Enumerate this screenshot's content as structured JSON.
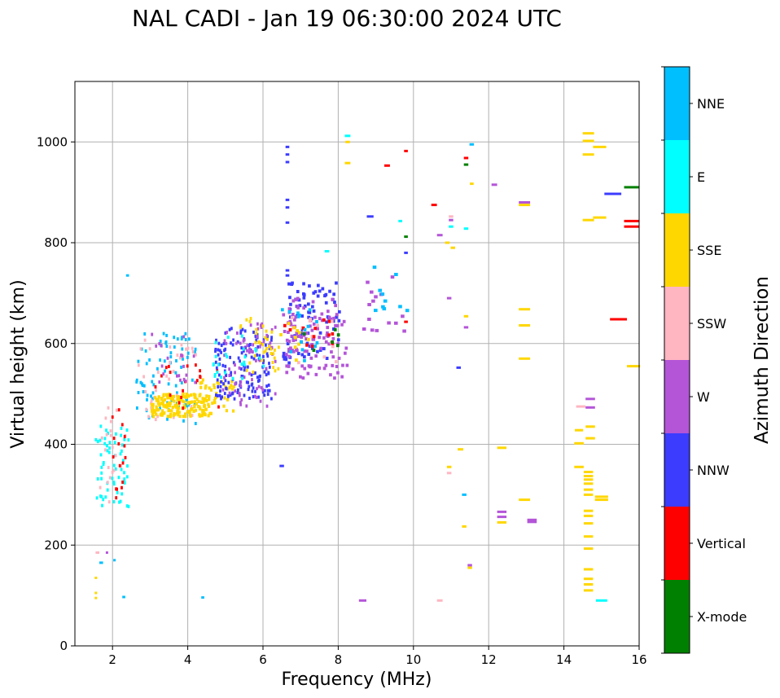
{
  "chart_data": {
    "type": "scatter",
    "title": "NAL CADI - Jan 19 06:30:00 2024 UTC",
    "xlabel": "Frequency (MHz)",
    "ylabel": "Virtual height (km)",
    "xlim": [
      1,
      16
    ],
    "ylim": [
      0,
      1120
    ],
    "xticks": [
      2,
      4,
      6,
      8,
      10,
      12,
      14,
      16
    ],
    "yticks": [
      0,
      200,
      400,
      600,
      800,
      1000
    ],
    "grid": true,
    "colorbar": {
      "title": "Azimuth Direction",
      "categories": [
        {
          "name": "X-mode",
          "color": "#008000"
        },
        {
          "name": "Vertical",
          "color": "#ff0000"
        },
        {
          "name": "NNW",
          "color": "#3c3cff"
        },
        {
          "name": "W",
          "color": "#b455d8"
        },
        {
          "name": "SSW",
          "color": "#ffb6c1"
        },
        {
          "name": "SSE",
          "color": "#ffd700"
        },
        {
          "name": "E",
          "color": "#00ffff"
        },
        {
          "name": "NNE",
          "color": "#00bfff"
        }
      ]
    },
    "clusters": [
      {
        "category": "E",
        "f": [
          1.5,
          2.4
        ],
        "h": [
          270,
          440
        ],
        "n": 60,
        "dx": 0.06
      },
      {
        "category": "SSW",
        "f": [
          1.6,
          2.4
        ],
        "h": [
          280,
          500
        ],
        "n": 20,
        "dx": 0.06
      },
      {
        "category": "Vertical",
        "f": [
          1.9,
          2.4
        ],
        "h": [
          290,
          500
        ],
        "n": 16,
        "dx": 0.06
      },
      {
        "category": "NNE",
        "f": [
          2.6,
          4.2
        ],
        "h": [
          430,
          620
        ],
        "n": 80,
        "dx": 0.06
      },
      {
        "category": "SSW",
        "f": [
          2.6,
          4.2
        ],
        "h": [
          440,
          610
        ],
        "n": 40,
        "dx": 0.06
      },
      {
        "category": "SSE",
        "f": [
          3.0,
          4.6
        ],
        "h": [
          455,
          500
        ],
        "n": 160,
        "dx": 0.07
      },
      {
        "category": "SSE",
        "f": [
          4.3,
          5.2
        ],
        "h": [
          460,
          530
        ],
        "n": 40,
        "dx": 0.07
      },
      {
        "category": "Vertical",
        "f": [
          3.0,
          4.8
        ],
        "h": [
          470,
          560
        ],
        "n": 20,
        "dx": 0.06
      },
      {
        "category": "W",
        "f": [
          3.0,
          4.5
        ],
        "h": [
          520,
          620
        ],
        "n": 20,
        "dx": 0.06
      },
      {
        "category": "NNW",
        "f": [
          4.7,
          6.2
        ],
        "h": [
          490,
          630
        ],
        "n": 150,
        "dx": 0.06
      },
      {
        "category": "W",
        "f": [
          4.9,
          6.3
        ],
        "h": [
          470,
          640
        ],
        "n": 70,
        "dx": 0.06
      },
      {
        "category": "SSE",
        "f": [
          5.3,
          6.5
        ],
        "h": [
          540,
          650
        ],
        "n": 35,
        "dx": 0.06
      },
      {
        "category": "E",
        "f": [
          4.6,
          6.0
        ],
        "h": [
          520,
          620
        ],
        "n": 25,
        "dx": 0.06
      },
      {
        "category": "NNW",
        "f": [
          6.5,
          8.0
        ],
        "h": [
          560,
          720
        ],
        "n": 80,
        "dx": 0.08
      },
      {
        "category": "W",
        "f": [
          6.5,
          8.2
        ],
        "h": [
          530,
          690
        ],
        "n": 110,
        "dx": 0.08
      },
      {
        "category": "SSW",
        "f": [
          6.6,
          8.0
        ],
        "h": [
          560,
          660
        ],
        "n": 15,
        "dx": 0.08
      },
      {
        "category": "Vertical",
        "f": [
          6.5,
          8.0
        ],
        "h": [
          570,
          650
        ],
        "n": 12,
        "dx": 0.08
      },
      {
        "category": "SSE",
        "f": [
          6.3,
          7.2
        ],
        "h": [
          560,
          640
        ],
        "n": 10,
        "dx": 0.08
      },
      {
        "category": "NNE",
        "f": [
          6.4,
          7.5
        ],
        "h": [
          560,
          680
        ],
        "n": 15,
        "dx": 0.08
      },
      {
        "category": "X-mode",
        "f": [
          7.0,
          8.2
        ],
        "h": [
          580,
          640
        ],
        "n": 6,
        "dx": 0.08
      },
      {
        "category": "W",
        "f": [
          8.5,
          9.8
        ],
        "h": [
          620,
          740
        ],
        "n": 15,
        "dx": 0.1
      },
      {
        "category": "NNE",
        "f": [
          8.8,
          9.8
        ],
        "h": [
          640,
          760
        ],
        "n": 10,
        "dx": 0.1
      }
    ],
    "segments": [
      {
        "category": "NNE",
        "f": 2.4,
        "h": 735,
        "w": 0.08
      },
      {
        "category": "NNE",
        "f": 1.7,
        "h": 165,
        "w": 0.1
      },
      {
        "category": "NNE",
        "f": 2.05,
        "h": 170,
        "w": 0.06
      },
      {
        "category": "NNE",
        "f": 2.3,
        "h": 97,
        "w": 0.08
      },
      {
        "category": "NNE",
        "f": 4.4,
        "h": 96,
        "w": 0.08
      },
      {
        "category": "SSW",
        "f": 1.6,
        "h": 185,
        "w": 0.1
      },
      {
        "category": "W",
        "f": 1.85,
        "h": 185,
        "w": 0.06
      },
      {
        "category": "SSE",
        "f": 1.55,
        "h": 95,
        "w": 0.05
      },
      {
        "category": "SSE",
        "f": 1.55,
        "h": 105,
        "w": 0.05
      },
      {
        "category": "SSE",
        "f": 1.55,
        "h": 135,
        "w": 0.05
      },
      {
        "category": "NNW",
        "f": 6.5,
        "h": 357,
        "w": 0.12
      },
      {
        "category": "NNW",
        "f": 6.65,
        "h": 990,
        "w": 0.1
      },
      {
        "category": "NNW",
        "f": 6.65,
        "h": 975,
        "w": 0.1
      },
      {
        "category": "NNW",
        "f": 6.65,
        "h": 960,
        "w": 0.1
      },
      {
        "category": "NNW",
        "f": 6.65,
        "h": 885,
        "w": 0.1
      },
      {
        "category": "NNW",
        "f": 6.65,
        "h": 870,
        "w": 0.1
      },
      {
        "category": "NNW",
        "f": 6.65,
        "h": 840,
        "w": 0.1
      },
      {
        "category": "NNW",
        "f": 6.65,
        "h": 745,
        "w": 0.1
      },
      {
        "category": "NNW",
        "f": 6.65,
        "h": 735,
        "w": 0.1
      },
      {
        "category": "E",
        "f": 8.25,
        "h": 1012,
        "w": 0.15
      },
      {
        "category": "SSE",
        "f": 8.25,
        "h": 1000,
        "w": 0.12
      },
      {
        "category": "SSE",
        "f": 8.25,
        "h": 958,
        "w": 0.15
      },
      {
        "category": "NNW",
        "f": 8.85,
        "h": 852,
        "w": 0.18
      },
      {
        "category": "E",
        "f": 7.7,
        "h": 783,
        "w": 0.12
      },
      {
        "category": "Vertical",
        "f": 9.8,
        "h": 982,
        "w": 0.1
      },
      {
        "category": "Vertical",
        "f": 9.3,
        "h": 953,
        "w": 0.15
      },
      {
        "category": "E",
        "f": 9.65,
        "h": 843,
        "w": 0.1
      },
      {
        "category": "X-mode",
        "f": 9.8,
        "h": 812,
        "w": 0.1
      },
      {
        "category": "NNW",
        "f": 9.8,
        "h": 780,
        "w": 0.1
      },
      {
        "category": "Vertical",
        "f": 9.8,
        "h": 643,
        "w": 0.1
      },
      {
        "category": "Vertical",
        "f": 10.55,
        "h": 875,
        "w": 0.15
      },
      {
        "category": "W",
        "f": 10.7,
        "h": 815,
        "w": 0.15
      },
      {
        "category": "SSE",
        "f": 10.9,
        "h": 800,
        "w": 0.12
      },
      {
        "category": "SSE",
        "f": 11.05,
        "h": 790,
        "w": 0.12
      },
      {
        "category": "E",
        "f": 11.0,
        "h": 832,
        "w": 0.12
      },
      {
        "category": "W",
        "f": 11.0,
        "h": 845,
        "w": 0.12
      },
      {
        "category": "SSW",
        "f": 11.0,
        "h": 852,
        "w": 0.12
      },
      {
        "category": "Vertical",
        "f": 11.4,
        "h": 968,
        "w": 0.12
      },
      {
        "category": "X-mode",
        "f": 11.4,
        "h": 955,
        "w": 0.12
      },
      {
        "category": "E",
        "f": 11.4,
        "h": 828,
        "w": 0.12
      },
      {
        "category": "NNE",
        "f": 11.55,
        "h": 995,
        "w": 0.12
      },
      {
        "category": "SSE",
        "f": 11.55,
        "h": 917,
        "w": 0.1
      },
      {
        "category": "W",
        "f": 12.15,
        "h": 915,
        "w": 0.15
      },
      {
        "category": "W",
        "f": 10.95,
        "h": 690,
        "w": 0.12
      },
      {
        "category": "SSE",
        "f": 11.4,
        "h": 654,
        "w": 0.12
      },
      {
        "category": "W",
        "f": 11.4,
        "h": 632,
        "w": 0.12
      },
      {
        "category": "NNW",
        "f": 11.2,
        "h": 552,
        "w": 0.12
      },
      {
        "category": "SSE",
        "f": 11.25,
        "h": 390,
        "w": 0.15
      },
      {
        "category": "SSE",
        "f": 10.95,
        "h": 355,
        "w": 0.12
      },
      {
        "category": "SSW",
        "f": 10.95,
        "h": 343,
        "w": 0.12
      },
      {
        "category": "NNE",
        "f": 11.35,
        "h": 300,
        "w": 0.12
      },
      {
        "category": "SSE",
        "f": 11.35,
        "h": 237,
        "w": 0.12
      },
      {
        "category": "W",
        "f": 11.5,
        "h": 160,
        "w": 0.12
      },
      {
        "category": "SSE",
        "f": 11.5,
        "h": 155,
        "w": 0.12
      },
      {
        "category": "SSW",
        "f": 10.7,
        "h": 90,
        "w": 0.15
      },
      {
        "category": "W",
        "f": 8.65,
        "h": 90,
        "w": 0.2
      },
      {
        "category": "SSE",
        "f": 12.35,
        "h": 393,
        "w": 0.25
      },
      {
        "category": "W",
        "f": 12.35,
        "h": 266,
        "w": 0.25
      },
      {
        "category": "W",
        "f": 12.35,
        "h": 256,
        "w": 0.25
      },
      {
        "category": "SSE",
        "f": 12.35,
        "h": 245,
        "w": 0.25
      },
      {
        "category": "W",
        "f": 12.95,
        "h": 880,
        "w": 0.3
      },
      {
        "category": "SSE",
        "f": 12.95,
        "h": 875,
        "w": 0.3
      },
      {
        "category": "SSE",
        "f": 12.95,
        "h": 668,
        "w": 0.3
      },
      {
        "category": "SSE",
        "f": 12.95,
        "h": 636,
        "w": 0.3
      },
      {
        "category": "SSE",
        "f": 12.95,
        "h": 570,
        "w": 0.3
      },
      {
        "category": "SSE",
        "f": 12.95,
        "h": 290,
        "w": 0.3
      },
      {
        "category": "W",
        "f": 13.15,
        "h": 250,
        "w": 0.25
      },
      {
        "category": "W",
        "f": 13.15,
        "h": 246,
        "w": 0.25
      },
      {
        "category": "SSE",
        "f": 14.65,
        "h": 1017,
        "w": 0.3
      },
      {
        "category": "SSE",
        "f": 14.65,
        "h": 1002,
        "w": 0.3
      },
      {
        "category": "SSE",
        "f": 14.65,
        "h": 975,
        "w": 0.3
      },
      {
        "category": "SSE",
        "f": 14.65,
        "h": 845,
        "w": 0.3
      },
      {
        "category": "SSE",
        "f": 14.95,
        "h": 990,
        "w": 0.35
      },
      {
        "category": "SSE",
        "f": 14.95,
        "h": 850,
        "w": 0.35
      },
      {
        "category": "NNW",
        "f": 15.3,
        "h": 897,
        "w": 0.45
      },
      {
        "category": "X-mode",
        "f": 15.8,
        "h": 910,
        "w": 0.4
      },
      {
        "category": "Vertical",
        "f": 15.8,
        "h": 843,
        "w": 0.4
      },
      {
        "category": "Vertical",
        "f": 15.8,
        "h": 832,
        "w": 0.4
      },
      {
        "category": "Vertical",
        "f": 15.45,
        "h": 648,
        "w": 0.45
      },
      {
        "category": "SSE",
        "f": 15.85,
        "h": 555,
        "w": 0.35
      },
      {
        "category": "SSW",
        "f": 14.45,
        "h": 475,
        "w": 0.25
      },
      {
        "category": "W",
        "f": 14.7,
        "h": 490,
        "w": 0.25
      },
      {
        "category": "W",
        "f": 14.7,
        "h": 473,
        "w": 0.25
      },
      {
        "category": "SSE",
        "f": 14.7,
        "h": 435,
        "w": 0.25
      },
      {
        "category": "SSE",
        "f": 14.4,
        "h": 428,
        "w": 0.22
      },
      {
        "category": "SSE",
        "f": 14.7,
        "h": 412,
        "w": 0.25
      },
      {
        "category": "SSE",
        "f": 14.4,
        "h": 402,
        "w": 0.25
      },
      {
        "category": "SSE",
        "f": 14.4,
        "h": 355,
        "w": 0.25
      },
      {
        "category": "SSE",
        "f": 14.65,
        "h": 345,
        "w": 0.25
      },
      {
        "category": "SSE",
        "f": 14.65,
        "h": 337,
        "w": 0.25
      },
      {
        "category": "SSE",
        "f": 14.65,
        "h": 330,
        "w": 0.25
      },
      {
        "category": "SSE",
        "f": 14.65,
        "h": 322,
        "w": 0.25
      },
      {
        "category": "SSE",
        "f": 14.65,
        "h": 310,
        "w": 0.25
      },
      {
        "category": "SSE",
        "f": 14.65,
        "h": 300,
        "w": 0.25
      },
      {
        "category": "SSE",
        "f": 15.0,
        "h": 296,
        "w": 0.35
      },
      {
        "category": "SSE",
        "f": 15.0,
        "h": 290,
        "w": 0.35
      },
      {
        "category": "SSE",
        "f": 14.65,
        "h": 268,
        "w": 0.25
      },
      {
        "category": "SSE",
        "f": 14.65,
        "h": 258,
        "w": 0.25
      },
      {
        "category": "SSE",
        "f": 14.65,
        "h": 243,
        "w": 0.25
      },
      {
        "category": "SSE",
        "f": 14.65,
        "h": 217,
        "w": 0.25
      },
      {
        "category": "SSE",
        "f": 14.65,
        "h": 193,
        "w": 0.25
      },
      {
        "category": "SSE",
        "f": 14.65,
        "h": 152,
        "w": 0.25
      },
      {
        "category": "SSE",
        "f": 14.65,
        "h": 133,
        "w": 0.25
      },
      {
        "category": "SSE",
        "f": 14.65,
        "h": 122,
        "w": 0.25
      },
      {
        "category": "SSE",
        "f": 14.65,
        "h": 110,
        "w": 0.25
      },
      {
        "category": "E",
        "f": 15.0,
        "h": 90,
        "w": 0.3
      }
    ]
  }
}
